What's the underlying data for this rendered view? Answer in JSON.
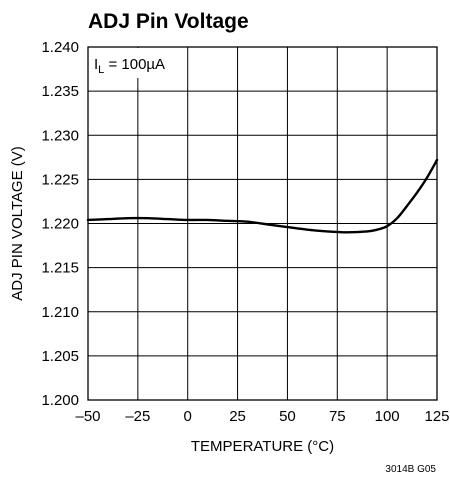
{
  "chart_data": {
    "type": "line",
    "title": "ADJ Pin Voltage",
    "xlabel": "TEMPERATURE (°C)",
    "ylabel": "ADJ PIN VOLTAGE (V)",
    "xlim": [
      -50,
      125
    ],
    "ylim": [
      1.2,
      1.24
    ],
    "x_ticks": [
      -50,
      -25,
      0,
      25,
      50,
      75,
      100,
      125
    ],
    "x_tick_labels": [
      "–50",
      "–25",
      "0",
      "25",
      "50",
      "75",
      "100",
      "125"
    ],
    "y_ticks": [
      1.2,
      1.205,
      1.21,
      1.215,
      1.22,
      1.225,
      1.23,
      1.235,
      1.24
    ],
    "y_tick_labels": [
      "1.200",
      "1.205",
      "1.210",
      "1.215",
      "1.220",
      "1.225",
      "1.230",
      "1.235",
      "1.240"
    ],
    "grid": true,
    "annotation": {
      "prefix": "I",
      "subscript": "L",
      "suffix": " = 100µA"
    },
    "series": [
      {
        "x": [
          -50,
          -40,
          -30,
          -20,
          -10,
          0,
          10,
          20,
          30,
          40,
          50,
          60,
          70,
          80,
          90,
          95,
          100,
          105,
          110,
          115,
          120,
          125
        ],
        "values": [
          1.2204,
          1.2205,
          1.2206,
          1.2206,
          1.2205,
          1.2204,
          1.2204,
          1.2203,
          1.2202,
          1.2199,
          1.2196,
          1.2193,
          1.2191,
          1.219,
          1.2191,
          1.2193,
          1.2197,
          1.2206,
          1.222,
          1.2235,
          1.2252,
          1.2272
        ]
      }
    ]
  },
  "footer_code": "3014B G05"
}
